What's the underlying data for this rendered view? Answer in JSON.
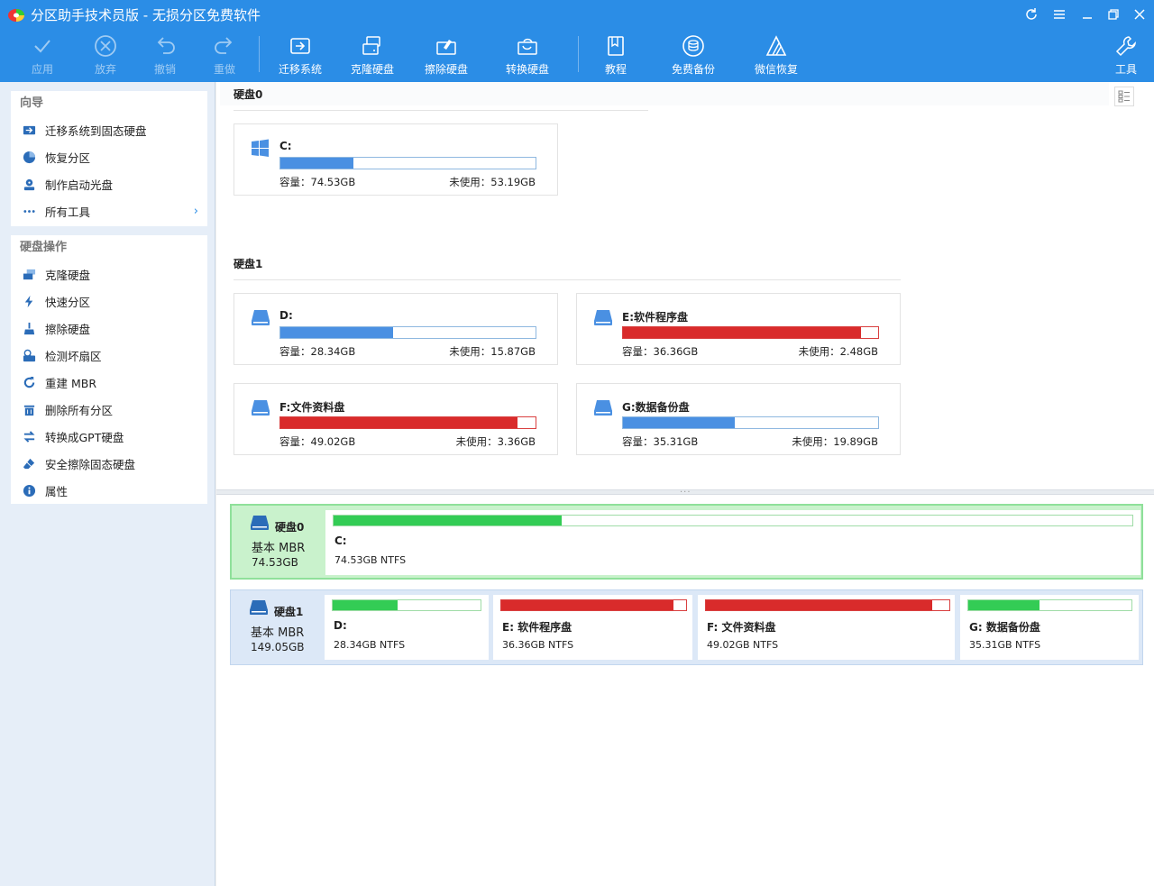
{
  "window": {
    "title": "分区助手技术员版 - 无损分区免费软件"
  },
  "toolbar": {
    "apply": "应用",
    "discard": "放弃",
    "undo": "撤销",
    "redo": "重做",
    "migrate": "迁移系统",
    "clone": "克隆硬盘",
    "wipe": "擦除硬盘",
    "convert": "转换硬盘",
    "tutorial": "教程",
    "backup": "免费备份",
    "recovery": "微信恢复",
    "tools": "工具"
  },
  "sidebar": {
    "wizard": {
      "header": "向导",
      "items": [
        {
          "label": "迁移系统到固态硬盘",
          "icon": "migrate-icon"
        },
        {
          "label": "恢复分区",
          "icon": "restore-partition-icon"
        },
        {
          "label": "制作启动光盘",
          "icon": "boot-disc-icon"
        },
        {
          "label": "所有工具",
          "icon": "more-dots-icon"
        }
      ]
    },
    "disk_ops": {
      "header": "硬盘操作",
      "items": [
        {
          "label": "克隆硬盘",
          "icon": "clone-disk-icon"
        },
        {
          "label": "快速分区",
          "icon": "lightning-icon"
        },
        {
          "label": "擦除硬盘",
          "icon": "broom-icon"
        },
        {
          "label": "检测坏扇区",
          "icon": "check-sector-icon"
        },
        {
          "label": "重建 MBR",
          "icon": "rebuild-mbr-icon"
        },
        {
          "label": "删除所有分区",
          "icon": "trash-icon"
        },
        {
          "label": "转换成GPT硬盘",
          "icon": "convert-icon"
        },
        {
          "label": "安全擦除固态硬盘",
          "icon": "eraser-icon"
        },
        {
          "label": "属性",
          "icon": "info-icon"
        }
      ]
    }
  },
  "upper": {
    "disk0": {
      "title": "硬盘0",
      "partitions": [
        {
          "name": "C:",
          "cap_label": "容量：74.53GB",
          "free_label": "未使用：53.19GB",
          "used_fraction": 0.286,
          "full": false,
          "icon": "windows-icon"
        }
      ]
    },
    "disk1": {
      "title": "硬盘1",
      "partitions": [
        {
          "name": "D:",
          "cap_label": "容量：28.34GB",
          "free_label": "未使用：15.87GB",
          "used_fraction": 0.44,
          "full": false,
          "icon": "drive-icon"
        },
        {
          "name": "E:软件程序盘",
          "cap_label": "容量：36.36GB",
          "free_label": "未使用：2.48GB",
          "used_fraction": 0.932,
          "full": true,
          "icon": "drive-icon"
        },
        {
          "name": "F:文件资料盘",
          "cap_label": "容量：49.02GB",
          "free_label": "未使用：3.36GB",
          "used_fraction": 0.931,
          "full": true,
          "icon": "drive-icon"
        },
        {
          "name": "G:数据备份盘",
          "cap_label": "容量：35.31GB",
          "free_label": "未使用：19.89GB",
          "used_fraction": 0.437,
          "full": false,
          "icon": "drive-icon"
        }
      ]
    }
  },
  "lower": {
    "disk0": {
      "name": "硬盘0",
      "type": "基本 MBR",
      "size": "74.53GB",
      "partitions": [
        {
          "name": "C:",
          "fs": "74.53GB NTFS",
          "used_fraction": 0.286,
          "full": false
        }
      ]
    },
    "disk1": {
      "name": "硬盘1",
      "type": "基本 MBR",
      "size": "149.05GB",
      "partitions": [
        {
          "name": "D:",
          "fs": "28.34GB NTFS",
          "used_fraction": 0.44,
          "full": false
        },
        {
          "name": "E: 软件程序盘",
          "fs": "36.36GB NTFS",
          "used_fraction": 0.932,
          "full": true
        },
        {
          "name": "F: 文件资料盘",
          "fs": "49.02GB NTFS",
          "used_fraction": 0.931,
          "full": true
        },
        {
          "name": "G: 数据备份盘",
          "fs": "35.31GB NTFS",
          "used_fraction": 0.437,
          "full": false
        }
      ]
    }
  },
  "colors": {
    "accent": "#2b8de6",
    "bar_blue": "#4a90e2",
    "bar_red": "#d92b2b",
    "bar_green": "#33cc55",
    "selected_row": "#c9f2cc"
  }
}
